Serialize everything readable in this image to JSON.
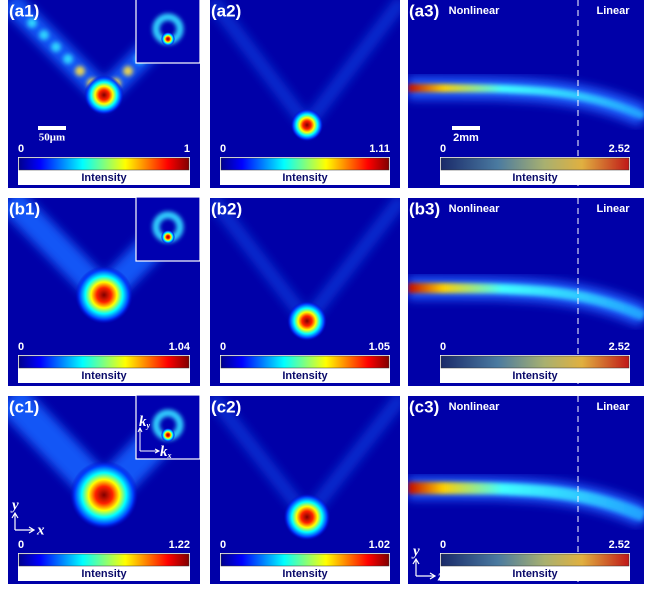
{
  "panels": [
    {
      "label": "(a1)",
      "colorbar": {
        "min": 0,
        "max": 1,
        "label": "Intensity"
      },
      "scale_bar": "50μm"
    },
    {
      "label": "(a2)",
      "colorbar": {
        "min": 0,
        "max": 1.11,
        "label": "Intensity"
      }
    },
    {
      "label": "(a3)",
      "colorbar": {
        "min": 0,
        "max": 2.52,
        "label": "Intensity"
      },
      "regions": [
        "Nonlinear",
        "Linear"
      ],
      "scale_bar": "2mm"
    },
    {
      "label": "(b1)",
      "colorbar": {
        "min": 0,
        "max": 1.04,
        "label": "Intensity"
      }
    },
    {
      "label": "(b2)",
      "colorbar": {
        "min": 0,
        "max": 1.05,
        "label": "Intensity"
      }
    },
    {
      "label": "(b3)",
      "colorbar": {
        "min": 0,
        "max": 2.52,
        "label": "Intensity"
      },
      "regions": [
        "Nonlinear",
        "Linear"
      ]
    },
    {
      "label": "(c1)",
      "colorbar": {
        "min": 0,
        "max": 1.22,
        "label": "Intensity"
      },
      "axes": {
        "vertical": "y",
        "horizontal": "x"
      },
      "inset_axes": {
        "vertical": {
          "base": "k",
          "sub": "y"
        },
        "horizontal": {
          "base": "k",
          "sub": "x"
        }
      }
    },
    {
      "label": "(c2)",
      "colorbar": {
        "min": 0,
        "max": 1.02,
        "label": "Intensity"
      }
    },
    {
      "label": "(c3)",
      "colorbar": {
        "min": 0,
        "max": 2.52,
        "label": "Intensity"
      },
      "regions": [
        "Nonlinear",
        "Linear"
      ],
      "axes": {
        "vertical": "y",
        "horizontal": "z"
      }
    }
  ]
}
